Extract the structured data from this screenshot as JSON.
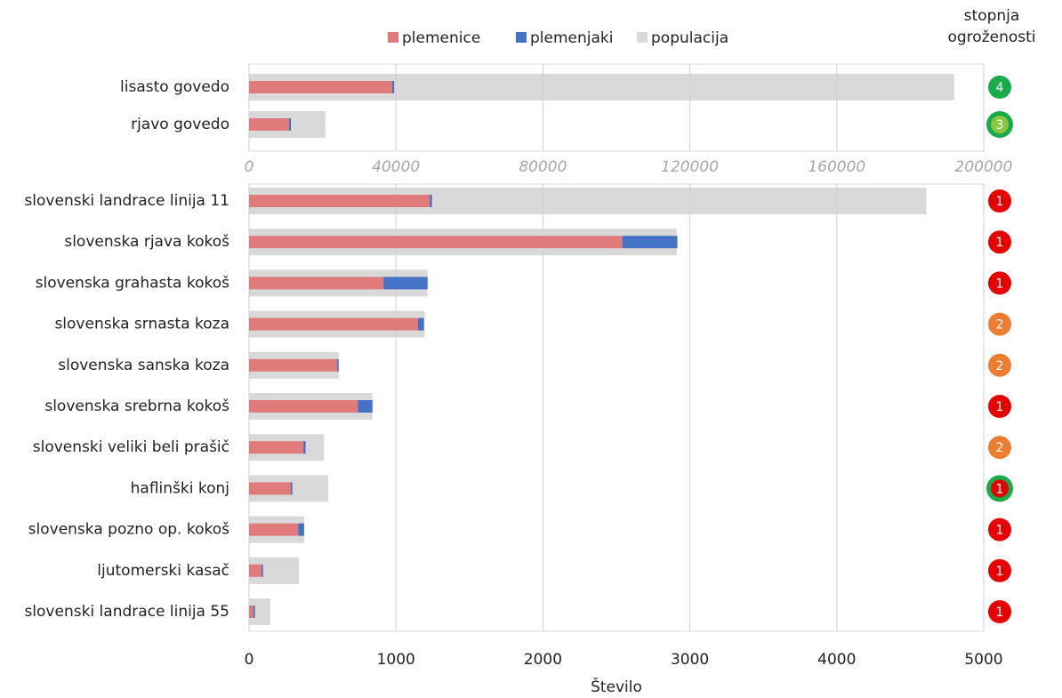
{
  "legend_title_threat": [
    "stopnja",
    "ogroženosti"
  ],
  "x_label": "Število",
  "chart_data": [
    {
      "type": "bar",
      "categories": [
        "lisasto govedo",
        "rjavo govedo"
      ],
      "series": [
        {
          "name": "plemenice",
          "color": "#e07b7b",
          "values": [
            39000,
            10900
          ]
        },
        {
          "name": "plemenjaki",
          "color": "#4472c4",
          "values": [
            500,
            500
          ]
        },
        {
          "name": "populacija",
          "color": "#d9d9d9",
          "values": [
            192000,
            20800
          ]
        }
      ],
      "threat_levels": [
        4,
        3
      ],
      "threat_colors": [
        "#1aab4b",
        "#8cc63f"
      ],
      "threat_ring_colors": [
        null,
        "#1aab4b"
      ],
      "xlim": [
        0,
        200000
      ],
      "xticks": [
        0,
        40000,
        80000,
        120000,
        160000,
        200000
      ],
      "grid": true
    },
    {
      "type": "bar",
      "categories": [
        "slovenski landrace linija 11",
        "slovenska rjava kokoš",
        "slovenska grahasta kokoš",
        "slovenska srnasta koza",
        "slovenska sanska koza",
        "slovenska srebrna kokoš",
        "slovenski veliki beli prašič",
        "haflinški konj",
        "slovenska pozno op. kokoš",
        "ljutomerski kasač",
        "slovenski landrace linija 55"
      ],
      "series": [
        {
          "color": "#e07b7b",
          "values": [
            1230,
            2540,
            915,
            1150,
            600,
            740,
            370,
            285,
            335,
            85,
            30
          ]
        },
        {
          "color": "#4472c4",
          "values": [
            15,
            375,
            300,
            40,
            10,
            100,
            15,
            10,
            40,
            10,
            10
          ]
        },
        {
          "color": "#d9d9d9",
          "values": [
            4610,
            2910,
            1215,
            1195,
            610,
            840,
            510,
            540,
            375,
            340,
            145
          ]
        }
      ],
      "threat_levels": [
        1,
        1,
        1,
        2,
        2,
        1,
        2,
        1,
        1,
        1,
        1
      ],
      "threat_colors": [
        "#e60000",
        "#e60000",
        "#e60000",
        "#ed7d31",
        "#ed7d31",
        "#e60000",
        "#ed7d31",
        "#e60000",
        "#e60000",
        "#e60000",
        "#e60000"
      ],
      "threat_ring_colors": [
        null,
        null,
        null,
        null,
        null,
        null,
        null,
        "#1aab4b",
        null,
        null,
        null
      ],
      "xlim": [
        0,
        5000
      ],
      "xticks": [
        0,
        1000,
        2000,
        3000,
        4000,
        5000
      ],
      "grid": true
    }
  ]
}
